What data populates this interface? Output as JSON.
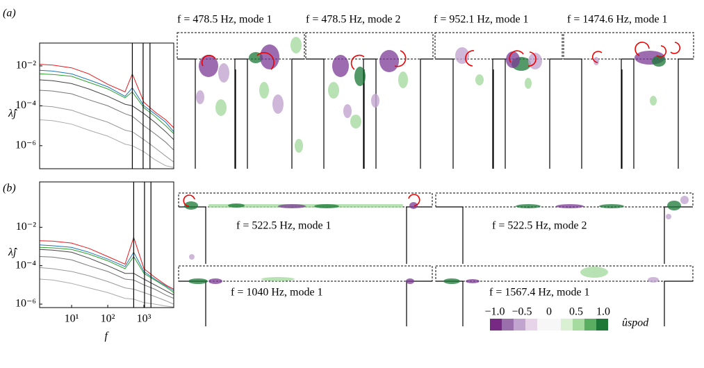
{
  "chart_data": [
    {
      "type": "line",
      "ylabel": "λ̂j",
      "xscale": "log",
      "yscale": "log",
      "xlim": [
        1.3,
        6700
      ],
      "ylim": [
        7e-08,
        0.14
      ],
      "yticks": [
        {
          "value": 0.01,
          "label": "10⁻²"
        },
        {
          "value": 0.0001,
          "label": "10⁻⁴"
        },
        {
          "value": 1e-06,
          "label": "10⁻⁶"
        }
      ],
      "vlines": [
        478.5,
        952.1,
        1474.6
      ],
      "x": [
        1.3,
        3,
        10,
        30,
        100,
        300,
        478.5,
        1000,
        2000,
        4000,
        6700
      ],
      "series": [
        {
          "color": "#aaaaaa",
          "values": [
            2e-05,
            1.8e-05,
            1.2e-05,
            6e-06,
            3e-06,
            1.2e-06,
            1e-06,
            5e-07,
            2e-07,
            1e-07,
            8e-08
          ]
        },
        {
          "color": "#999999",
          "values": [
            0.0001,
            9e-05,
            6e-05,
            3e-05,
            1.5e-05,
            6e-06,
            5e-06,
            2e-06,
            8e-07,
            3e-07,
            1.5e-07
          ]
        },
        {
          "color": "#777777",
          "values": [
            0.0006,
            0.00055,
            0.0004,
            0.0002,
            0.0001,
            4e-05,
            3e-05,
            1e-05,
            4e-06,
            1.5e-06,
            6e-07
          ]
        },
        {
          "color": "#444444",
          "values": [
            0.002,
            0.0018,
            0.0013,
            0.0007,
            0.0003,
            0.00012,
            0.0001,
            4e-05,
            1.5e-05,
            5e-06,
            2e-06
          ]
        },
        {
          "color": "#2ca02c",
          "values": [
            0.004,
            0.0037,
            0.003,
            0.0015,
            0.0007,
            0.00025,
            0.0005,
            8e-05,
            3e-05,
            1e-05,
            4e-06
          ]
        },
        {
          "color": "#1f77b4",
          "values": [
            0.006,
            0.0055,
            0.004,
            0.002,
            0.0009,
            0.0003,
            0.0008,
            0.0001,
            4e-05,
            1.5e-05,
            5e-06
          ]
        },
        {
          "color": "#e41a1c",
          "values": [
            0.012,
            0.011,
            0.008,
            0.004,
            0.0012,
            0.0005,
            0.004,
            0.00015,
            5e-05,
            2e-05,
            8e-06
          ]
        }
      ]
    },
    {
      "type": "line",
      "xlabel": "f",
      "ylabel": "λ̂j",
      "xscale": "log",
      "yscale": "log",
      "xlim": [
        1.3,
        6700
      ],
      "ylim": [
        6.6e-07,
        2.3
      ],
      "xticks": [
        {
          "value": 10,
          "label": "10¹"
        },
        {
          "value": 100,
          "label": "10²"
        },
        {
          "value": 1000,
          "label": "10³"
        }
      ],
      "yticks": [
        {
          "value": 0.01,
          "label": "10⁻²"
        },
        {
          "value": 0.0001,
          "label": "10⁻⁴"
        },
        {
          "value": 1e-06,
          "label": "10⁻⁶"
        }
      ],
      "vlines": [
        522.5,
        1040,
        1567.4
      ],
      "x": [
        1.3,
        3,
        10,
        30,
        100,
        300,
        522.5,
        1000,
        2000,
        4000,
        6700
      ],
      "series": [
        {
          "color": "#aaaaaa",
          "values": [
            2e-05,
            1.8e-05,
            1.2e-05,
            7e-06,
            4e-06,
            2e-06,
            1.8e-06,
            1.2e-06,
            1e-06,
            8e-07,
            7e-07
          ]
        },
        {
          "color": "#999999",
          "values": [
            8e-05,
            7e-05,
            5e-05,
            3e-05,
            1.5e-05,
            7e-06,
            6e-06,
            4e-06,
            2.5e-06,
            1.5e-06,
            1e-06
          ]
        },
        {
          "color": "#777777",
          "values": [
            0.0003,
            0.00028,
            0.0002,
            0.0001,
            5e-05,
            2e-05,
            1.8e-05,
            1e-05,
            6e-06,
            3e-06,
            2e-06
          ]
        },
        {
          "color": "#444444",
          "values": [
            0.0007,
            0.00065,
            0.0005,
            0.00025,
            0.0001,
            4e-05,
            4e-05,
            2e-05,
            1e-05,
            5e-06,
            3e-06
          ]
        },
        {
          "color": "#2ca02c",
          "values": [
            0.0009,
            0.00085,
            0.0007,
            0.0004,
            0.00018,
            7e-05,
            0.0003,
            4e-05,
            1.8e-05,
            8e-06,
            4e-06
          ]
        },
        {
          "color": "#1f77b4",
          "values": [
            0.0012,
            0.0011,
            0.0009,
            0.0005,
            0.00022,
            9e-05,
            0.0005,
            5e-05,
            2e-05,
            9e-06,
            5e-06
          ]
        },
        {
          "color": "#e41a1c",
          "values": [
            0.002,
            0.0019,
            0.0015,
            0.0008,
            0.0003,
            0.00012,
            0.003,
            7e-05,
            2.5e-05,
            1e-05,
            6e-06
          ]
        }
      ]
    }
  ],
  "panels": [
    {
      "label": "(a)",
      "captions": [
        "f = 478.5 Hz, mode 1",
        "f = 478.5 Hz, mode 2",
        "f = 952.1 Hz, mode 1",
        "f = 1474.6 Hz, mode 1"
      ]
    },
    {
      "label": "(b)",
      "captions": [
        "f = 522.5 Hz, mode 1",
        "f = 522.5 Hz, mode 2",
        "f = 1040 Hz, mode 1",
        "f = 1567.4 Hz, mode 1"
      ]
    }
  ],
  "colorbar": {
    "label": "ûspod",
    "ticks": [
      {
        "value": -1,
        "label": "−1.0"
      },
      {
        "value": -0.5,
        "label": "−0.5"
      },
      0,
      0.5,
      {
        "value": 1,
        "label": "1.0"
      }
    ]
  }
}
